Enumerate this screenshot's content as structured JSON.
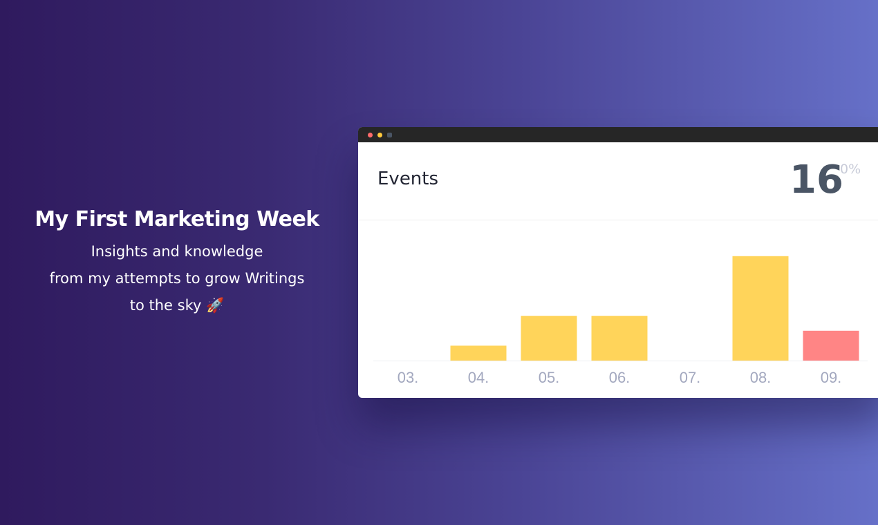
{
  "hero": {
    "title": "My First Marketing Week",
    "lines": [
      "Insights and knowledge",
      "from my attempts to grow Writings",
      "to the sky 🚀"
    ]
  },
  "window": {
    "controls": [
      "close",
      "minimize",
      "maximize"
    ],
    "title": "Events",
    "total": "16",
    "change": "0%"
  },
  "chart_data": {
    "type": "bar",
    "categories": [
      "03.",
      "04.",
      "05.",
      "06.",
      "07.",
      "08.",
      "09."
    ],
    "values": [
      0,
      1,
      3,
      3,
      0,
      7,
      2
    ],
    "colors": [
      "#ffd45a",
      "#ffd45a",
      "#ffd45a",
      "#ffd45a",
      "#ffd45a",
      "#ffd45a",
      "#ff8585"
    ],
    "grid": false,
    "xlabel": "",
    "ylabel": ""
  }
}
